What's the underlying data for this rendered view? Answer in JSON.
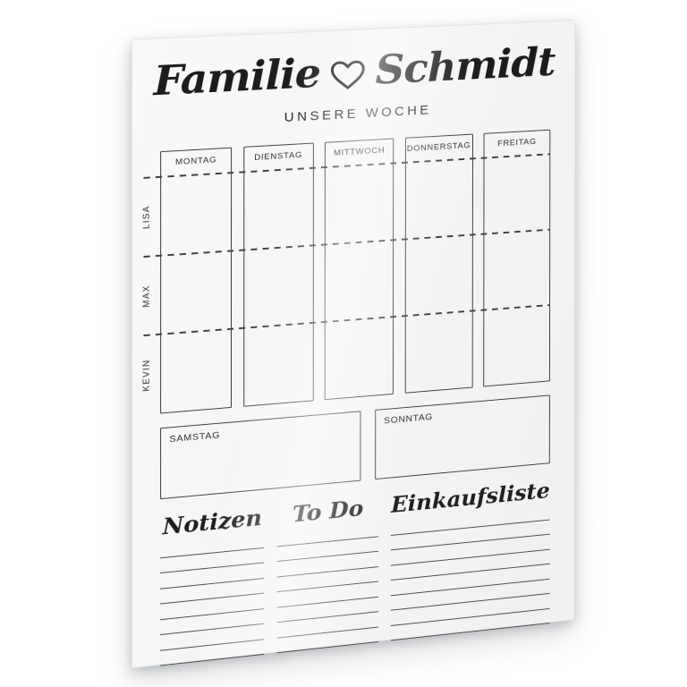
{
  "photo": {
    "background_color": "#ffffff",
    "surface_color": "#f4f5f6",
    "ink_color": "#2a2a2a"
  },
  "board": {
    "title": {
      "word1": "Familie",
      "word2": "Schmidt",
      "heart_icon": "heart-outline"
    },
    "subtitle": "UNSERE WOCHE",
    "weekdays": [
      "MONTAG",
      "DIENSTAG",
      "MITTWOCH",
      "DONNERSTAG",
      "FREITAG"
    ],
    "members": [
      "LISA",
      "MAX",
      "KEVIN"
    ],
    "weekend_days": [
      "SAMSTAG",
      "SONNTAG"
    ],
    "lists": [
      {
        "title": "Notizen",
        "line_count": 8
      },
      {
        "title": "To Do",
        "line_count": 8
      },
      {
        "title": "Einkaufsliste",
        "line_count": 8
      }
    ]
  }
}
